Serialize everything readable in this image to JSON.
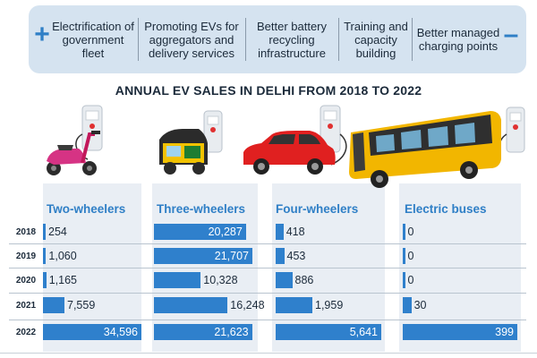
{
  "banner": {
    "policies": [
      "Electrification of government fleet",
      "Promoting EVs for aggregators and delivery services",
      "Better battery recycling infrastructure",
      "Training and capacity building",
      "Better managed charging points"
    ],
    "plus_icon": "+",
    "minus_icon": "–"
  },
  "chart_data": {
    "type": "table",
    "title": "ANNUAL EV SALES IN DELHI FROM 2018 TO 2022",
    "years": [
      "2018",
      "2019",
      "2020",
      "2021",
      "2022"
    ],
    "series": [
      {
        "name": "Two-wheelers",
        "values": [
          254,
          1060,
          1165,
          7559,
          34596
        ],
        "labels": [
          "254",
          "1,060",
          "1,165",
          "7,559",
          "34,596"
        ],
        "icon": "scooter-icon"
      },
      {
        "name": "Three-wheelers",
        "values": [
          20287,
          21707,
          10328,
          16248,
          21623
        ],
        "labels": [
          "20,287",
          "21,707",
          "10,328",
          "16,248",
          "21,623"
        ],
        "icon": "auto-rickshaw-icon"
      },
      {
        "name": "Four-wheelers",
        "values": [
          418,
          453,
          886,
          1959,
          5641
        ],
        "labels": [
          "418",
          "453",
          "886",
          "1,959",
          "5,641"
        ],
        "icon": "car-icon"
      },
      {
        "name": "Electric buses",
        "values": [
          0,
          0,
          0,
          30,
          399
        ],
        "labels": [
          "0",
          "0",
          "0",
          "30",
          "399"
        ],
        "icon": "bus-icon"
      }
    ],
    "colors": {
      "bar": "#2f80cc",
      "column_bg": "#e9eef4",
      "heading": "#2f7fc6",
      "banner": "#d5e3f0"
    }
  }
}
